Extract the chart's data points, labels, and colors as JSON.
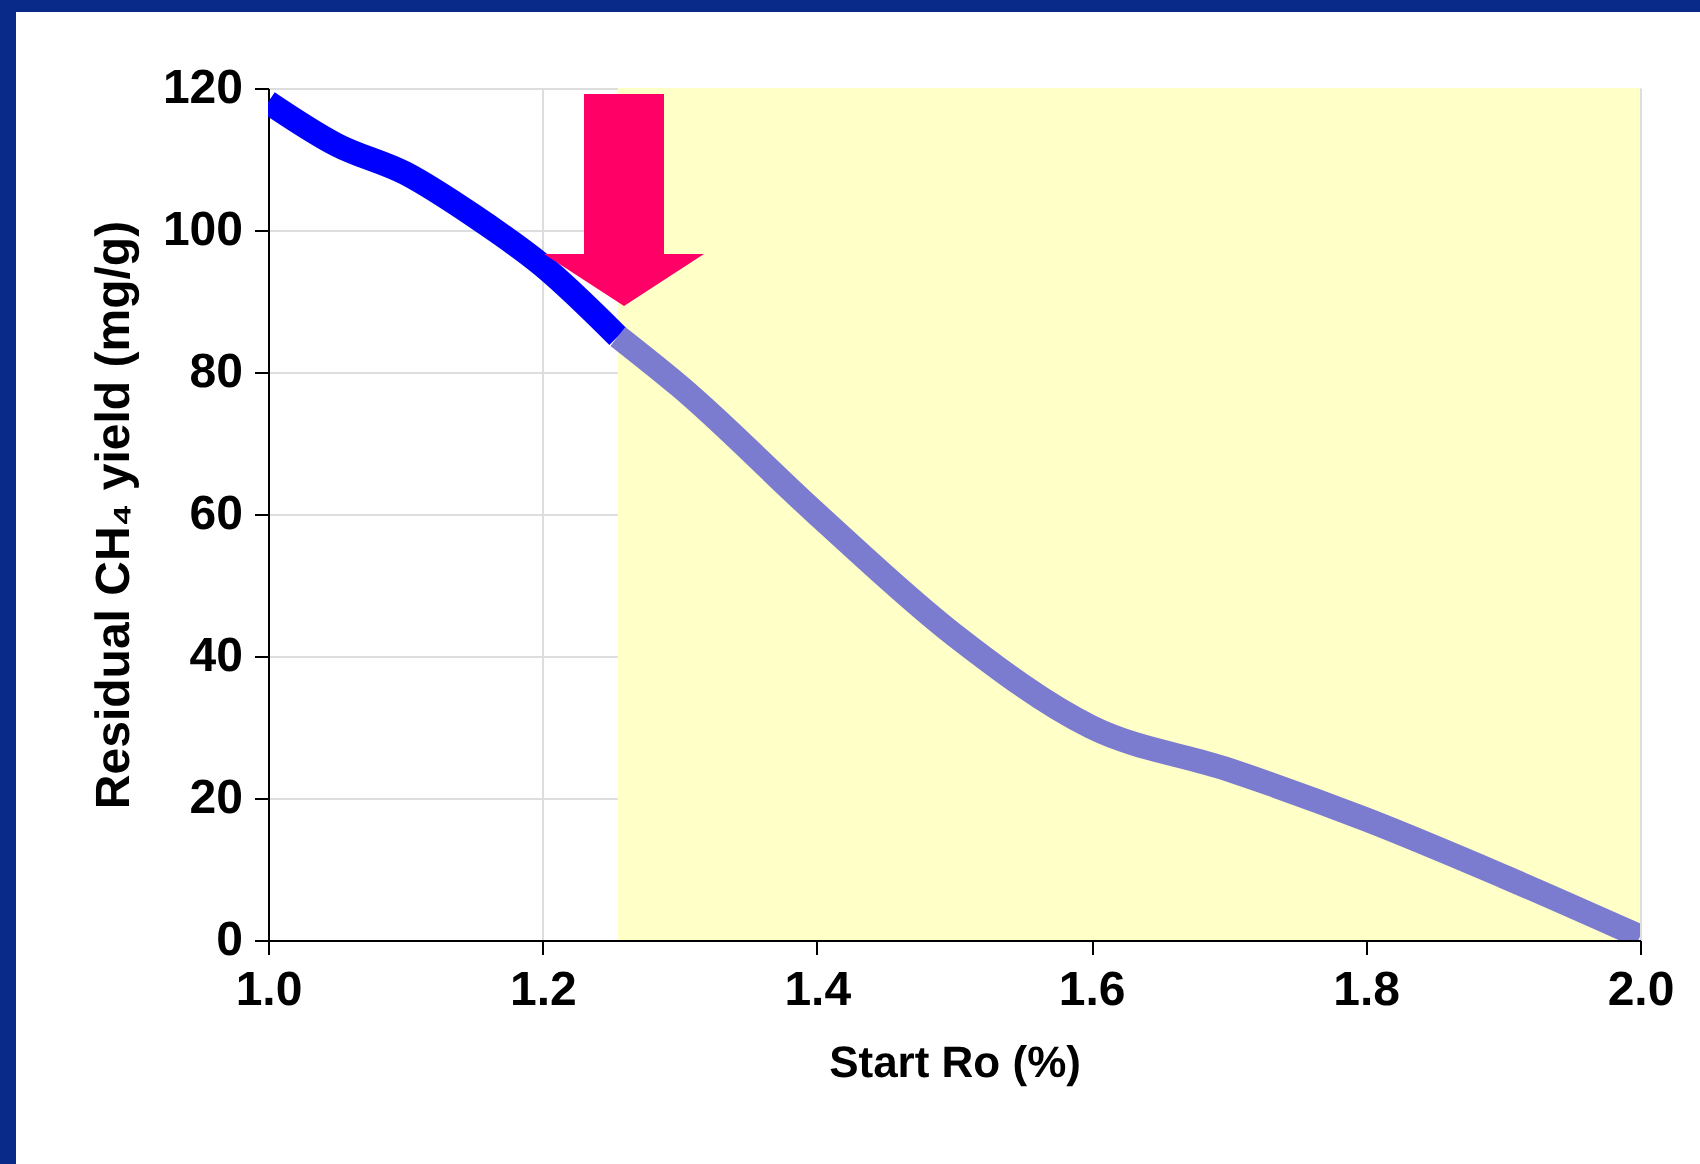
{
  "chart_data": {
    "type": "line",
    "xlabel": "Start Ro (%)",
    "ylabel": "Residual CH₄ yield (mg/g)",
    "xlim": [
      1.0,
      2.0
    ],
    "xticks": [
      {
        "value": 1.0,
        "label": "1.0"
      },
      {
        "value": 1.2,
        "label": "1.2"
      },
      {
        "value": 1.4,
        "label": "1.4"
      },
      {
        "value": 1.6,
        "label": "1.6"
      },
      {
        "value": 1.8,
        "label": "1.8"
      },
      {
        "value": 2.0,
        "label": "2.0"
      }
    ],
    "ylim": [
      0,
      120
    ],
    "yticks": [
      0,
      20,
      40,
      60,
      80,
      100,
      120
    ],
    "grid": true,
    "line_style": "solid",
    "marker": "none",
    "bands": [
      {
        "axis": "x",
        "from": 1.255,
        "to": 2.0,
        "color": "#ffffc8"
      }
    ],
    "series": [
      {
        "color": "#0000ff",
        "x": [
          1.0,
          1.05,
          1.1,
          1.15,
          1.2,
          1.255
        ],
        "values": [
          118,
          112,
          108,
          102,
          95,
          85
        ]
      },
      {
        "color": "#7b7bd0",
        "x": [
          1.255,
          1.3,
          1.4,
          1.5,
          1.6,
          1.7,
          1.8,
          1.9,
          2.0
        ],
        "values": [
          85,
          78,
          60,
          43,
          30,
          24,
          17,
          9,
          0.5
        ]
      }
    ]
  }
}
